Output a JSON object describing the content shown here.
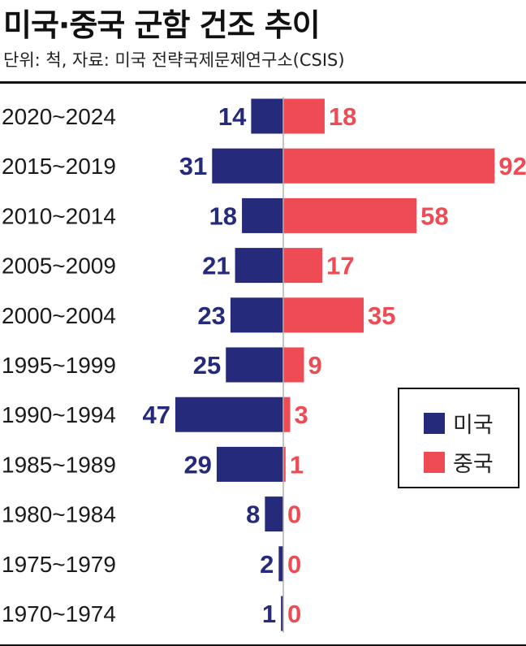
{
  "title": "미국·중국 군함 건조 추이",
  "subtitle": "단위: 척,  자료: 미국 전략국제문제연구소(CSIS)",
  "colors": {
    "us": "#252a7a",
    "china": "#ee4b55",
    "axis": "#b0b0b0"
  },
  "legend": {
    "us_label": "미국",
    "china_label": "중국"
  },
  "chart_data": {
    "type": "bar",
    "orientation": "horizontal-diverging",
    "title": "미국·중국 군함 건조 추이",
    "subtitle": "단위: 척,  자료: 미국 전략국제문제연구소(CSIS)",
    "categories": [
      "2020~2024",
      "2015~2019",
      "2010~2014",
      "2005~2009",
      "2000~2004",
      "1995~1999",
      "1990~1994",
      "1985~1989",
      "1980~1984",
      "1975~1979",
      "1970~1974"
    ],
    "series": [
      {
        "name": "미국",
        "values": [
          14,
          31,
          18,
          21,
          23,
          25,
          47,
          29,
          8,
          2,
          1
        ]
      },
      {
        "name": "중국",
        "values": [
          18,
          92,
          58,
          17,
          35,
          9,
          3,
          1,
          0,
          0,
          0
        ]
      }
    ],
    "legend_position": "right"
  }
}
